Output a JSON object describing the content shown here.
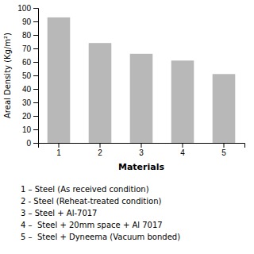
{
  "chart_data": {
    "type": "bar",
    "categories": [
      "1",
      "2",
      "3",
      "4",
      "5"
    ],
    "values": [
      93,
      74,
      66,
      61,
      51
    ],
    "color": "#b8b8b8",
    "xlabel": "Materials",
    "ylabel": "Areal Density (Kg/m²)",
    "ylim": [
      0,
      100
    ],
    "yticks": [
      0,
      10,
      20,
      30,
      40,
      50,
      60,
      70,
      80,
      90,
      100
    ],
    "annotations": [
      "1 – Steel (As received condition)",
      "2 - Steel (Reheat-treated condition)",
      "3 – Steel + Al-7017",
      "4 –  Steel + 20mm space + Al 7017",
      "5 –  Steel + Dyneema (Vacuum bonded)"
    ]
  }
}
